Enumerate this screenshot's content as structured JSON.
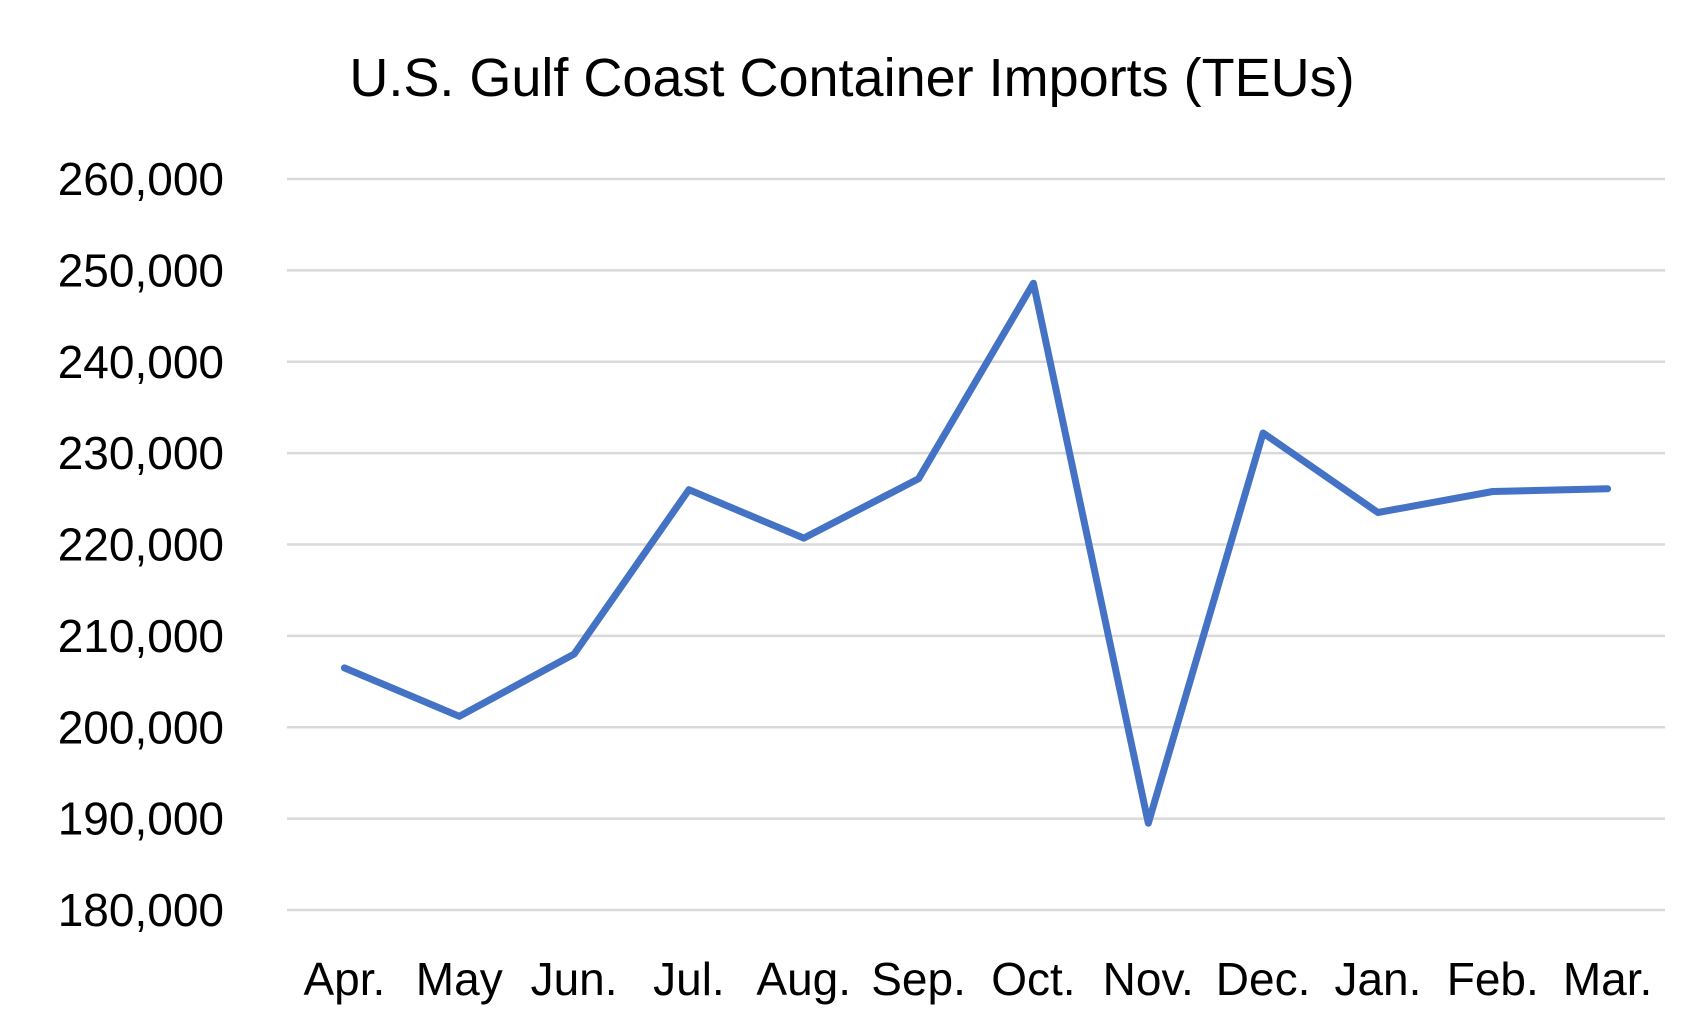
{
  "chart_data": {
    "type": "line",
    "title": "U.S. Gulf Coast Container Imports (TEUs)",
    "xlabel": "",
    "ylabel": "",
    "categories": [
      "Apr.",
      "May",
      "Jun.",
      "Jul.",
      "Aug.",
      "Sep.",
      "Oct.",
      "Nov.",
      "Dec.",
      "Jan.",
      "Feb.",
      "Mar."
    ],
    "series": [
      {
        "values": [
          206500,
          201200,
          208000,
          226000,
          220700,
          227200,
          248600,
          189500,
          232200,
          223500,
          225800,
          226100
        ],
        "color": "#4472C4"
      }
    ],
    "ylim": [
      180000,
      260000
    ],
    "yticks": [
      180000,
      190000,
      200000,
      210000,
      220000,
      230000,
      240000,
      250000,
      260000
    ],
    "ytick_labels": [
      "180,000",
      "190,000",
      "200,000",
      "210,000",
      "220,000",
      "230,000",
      "240,000",
      "250,000",
      "260,000"
    ],
    "grid": true,
    "legend": "none",
    "colors": {
      "series": "#4472C4",
      "gridline": "#d9d9d9",
      "text": "#000000"
    }
  }
}
